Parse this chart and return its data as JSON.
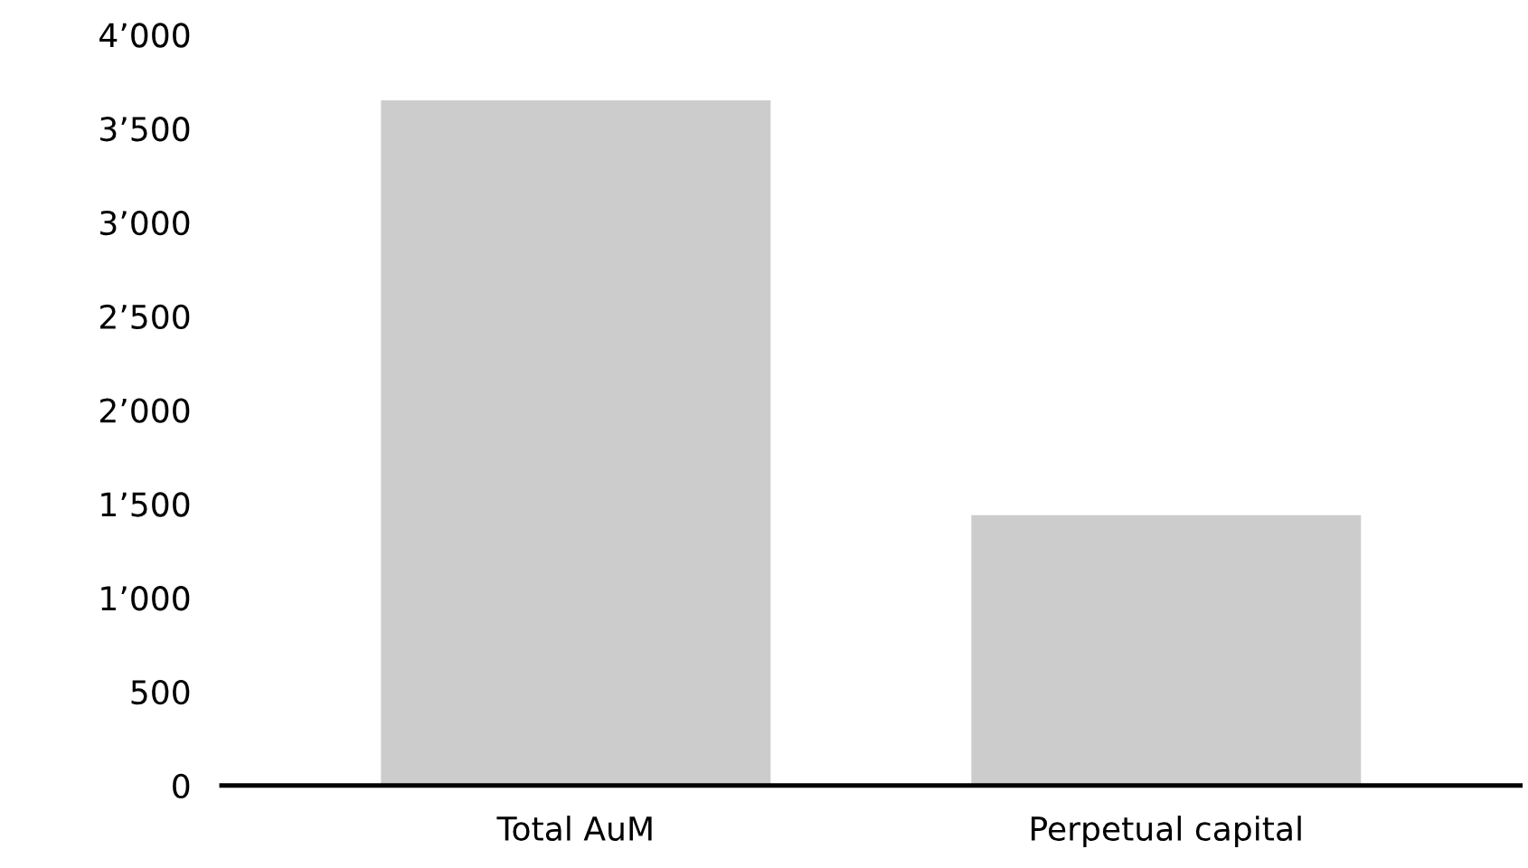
{
  "chart_data": {
    "type": "bar",
    "categories": [
      "Total AuM",
      "Perpetual capital"
    ],
    "values": [
      3650,
      1440
    ],
    "color": "#cccccc",
    "ylim": [
      0,
      4000
    ],
    "yticks": [
      0,
      500,
      {
        "value": 1000,
        "label": "1’000"
      },
      {
        "value": 1500,
        "label": "1’500"
      },
      {
        "value": 2000,
        "label": "2’000"
      },
      {
        "value": 2500,
        "label": "2’500"
      },
      {
        "value": 3000,
        "label": "3’000"
      },
      {
        "value": 3500,
        "label": "3’500"
      },
      {
        "value": 4000,
        "label": "4’000"
      }
    ],
    "grid": false,
    "legend": false
  }
}
